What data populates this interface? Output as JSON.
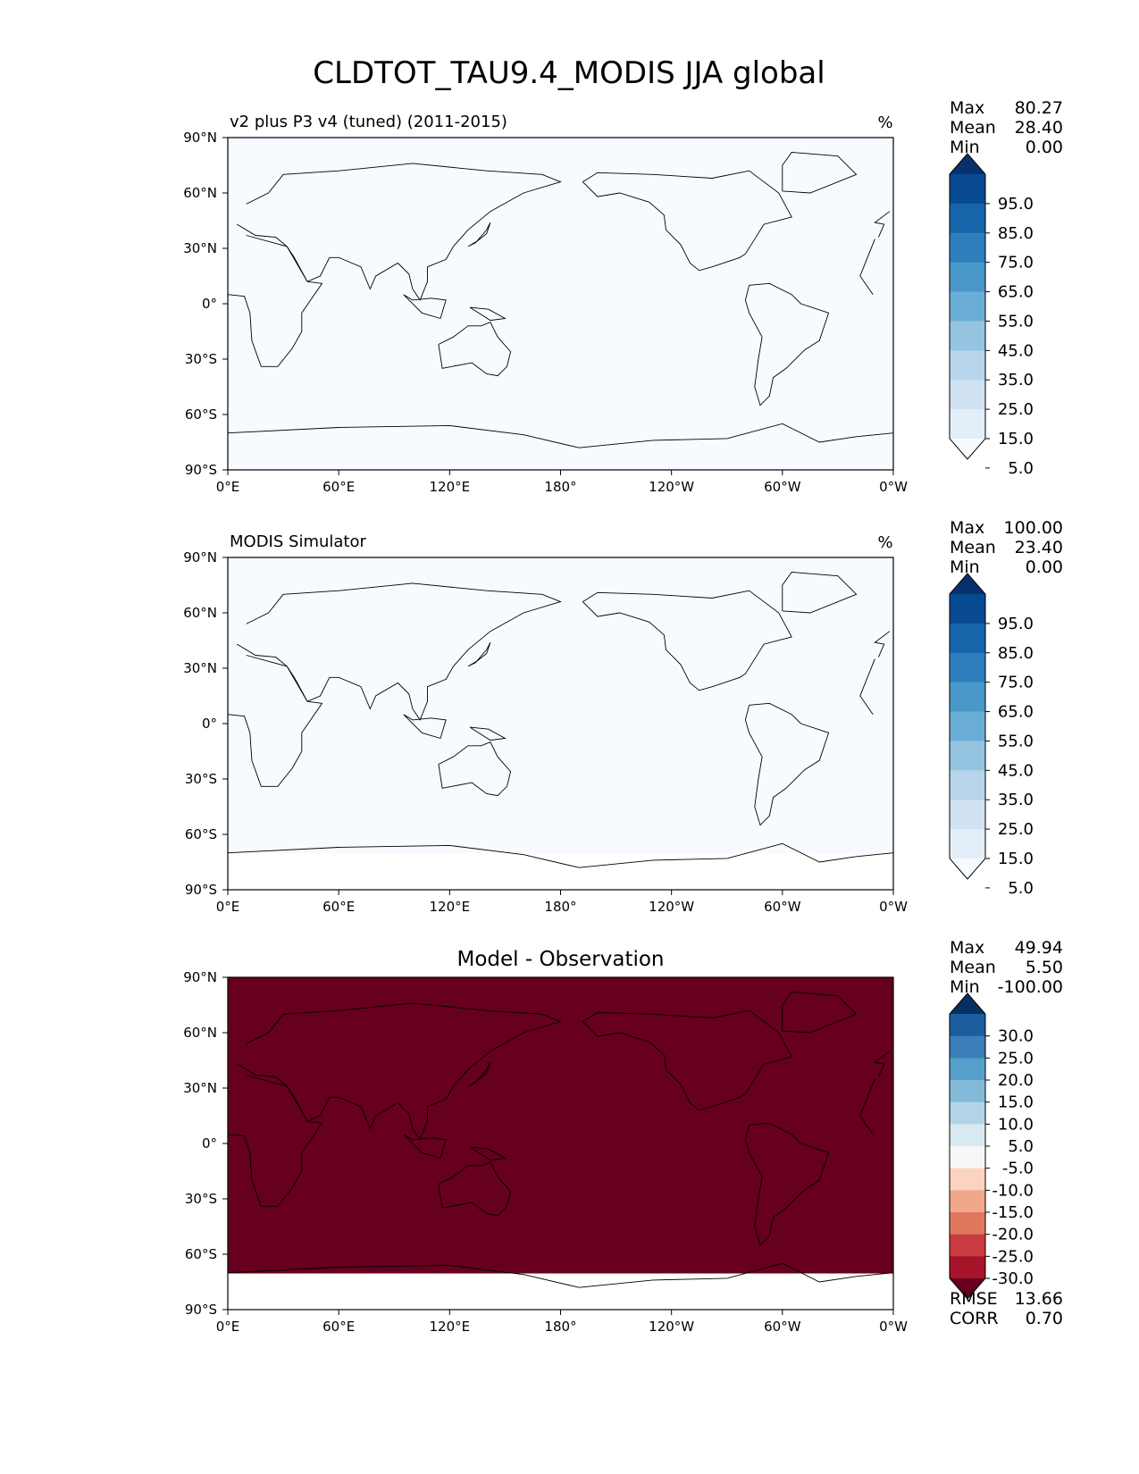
{
  "figure": {
    "title": "CLDTOT_TAU9.4_MODIS JJA global"
  },
  "colors": {
    "seq": [
      "#f7fbff",
      "#e3eef9",
      "#d0e1f2",
      "#b7d4ea",
      "#94c4df",
      "#6aaed6",
      "#4a98c9",
      "#2e7ebc",
      "#1764ab",
      "#084a91",
      "#08306b"
    ],
    "div": [
      "#67001f",
      "#a51429",
      "#c83c3f",
      "#e0785e",
      "#f1a789",
      "#fbd3c0",
      "#f7f7f7",
      "#d8e9f1",
      "#b1d5e7",
      "#82bad9",
      "#569fcb",
      "#3a7fb8",
      "#1a5e9f",
      "#053061"
    ],
    "coast": "#000000",
    "missing": "#ffffff"
  },
  "chart_data": [
    {
      "type": "heatmap",
      "id": "test",
      "title": "v2 plus P3 v4 (tuned) (2011-2015)",
      "units": "%",
      "xlim": [
        0,
        360
      ],
      "ylim": [
        -90,
        90
      ],
      "xticks": [
        "0°E",
        "60°E",
        "120°E",
        "180°",
        "120°W",
        "60°W",
        "0°W"
      ],
      "yticks": [
        "90°N",
        "60°N",
        "30°N",
        "0°",
        "30°S",
        "60°S",
        "90°S"
      ],
      "stats": [
        {
          "label": "Max",
          "value": "80.27"
        },
        {
          "label": "Mean",
          "value": "28.40"
        },
        {
          "label": "Min",
          "value": "0.00"
        }
      ],
      "colorbar": {
        "palette": "seq",
        "extend": "both",
        "labels": [
          "95.0",
          "85.0",
          "75.0",
          "65.0",
          "55.0",
          "45.0",
          "35.0",
          "25.0",
          "15.0",
          "5.0"
        ]
      }
    },
    {
      "type": "heatmap",
      "id": "ref",
      "title": "MODIS Simulator",
      "units": "%",
      "xlim": [
        0,
        360
      ],
      "ylim": [
        -90,
        90
      ],
      "xticks": [
        "0°E",
        "60°E",
        "120°E",
        "180°",
        "120°W",
        "60°W",
        "0°W"
      ],
      "yticks": [
        "90°N",
        "60°N",
        "30°N",
        "0°",
        "30°S",
        "60°S",
        "90°S"
      ],
      "stats": [
        {
          "label": "Max",
          "value": "100.00"
        },
        {
          "label": "Mean",
          "value": "23.40"
        },
        {
          "label": "Min",
          "value": "0.00"
        }
      ],
      "colorbar": {
        "palette": "seq",
        "extend": "both",
        "labels": [
          "95.0",
          "85.0",
          "75.0",
          "65.0",
          "55.0",
          "45.0",
          "35.0",
          "25.0",
          "15.0",
          "5.0"
        ]
      }
    },
    {
      "type": "heatmap",
      "id": "diff",
      "title": "Model - Observation",
      "units": "",
      "xlim": [
        0,
        360
      ],
      "ylim": [
        -90,
        90
      ],
      "xticks": [
        "0°E",
        "60°E",
        "120°E",
        "180°",
        "120°W",
        "60°W",
        "0°W"
      ],
      "yticks": [
        "90°N",
        "60°N",
        "30°N",
        "0°",
        "30°S",
        "60°S",
        "90°S"
      ],
      "stats": [
        {
          "label": "Max",
          "value": "49.94"
        },
        {
          "label": "Mean",
          "value": "5.50"
        },
        {
          "label": "Min",
          "value": "-100.00"
        }
      ],
      "extra_stats": [
        {
          "label": "RMSE",
          "value": "13.66"
        },
        {
          "label": "CORR",
          "value": "0.70"
        }
      ],
      "colorbar": {
        "palette": "div",
        "extend": "both",
        "labels": [
          "30.0",
          "25.0",
          "20.0",
          "15.0",
          "10.0",
          "5.0",
          "-5.0",
          "-10.0",
          "-15.0",
          "-20.0",
          "-25.0",
          "-30.0"
        ]
      }
    }
  ]
}
